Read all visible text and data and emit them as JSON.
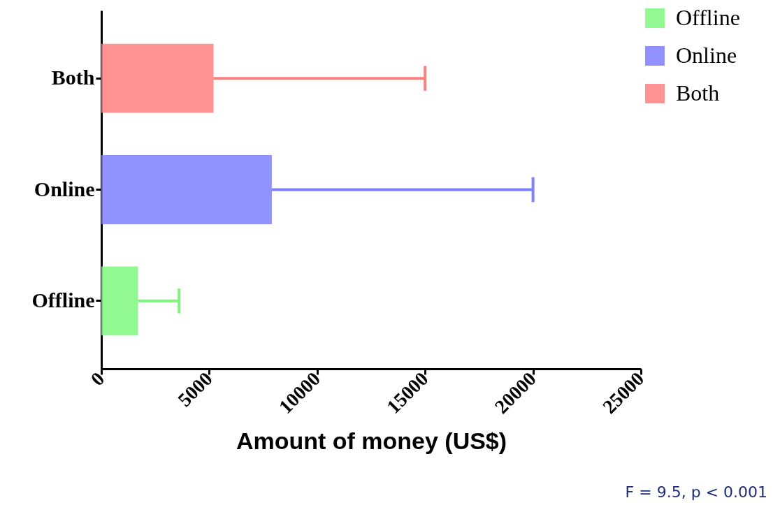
{
  "chart_data": {
    "type": "bar",
    "orientation": "horizontal",
    "categories": [
      "Both",
      "Online",
      "Offline"
    ],
    "series": [
      {
        "name": "Offline",
        "color": "#7ff77f",
        "values": [
          null,
          null,
          1700
        ],
        "errors": [
          null,
          null,
          [
            1700,
            3600
          ]
        ]
      },
      {
        "name": "Online",
        "color": "#7f7fff",
        "values": [
          null,
          7900,
          null
        ],
        "errors": [
          null,
          [
            7900,
            20000
          ],
          null
        ]
      },
      {
        "name": "Both",
        "color": "#ff7f7f",
        "values": [
          5200,
          null,
          null
        ],
        "errors": [
          [
            5200,
            15000
          ],
          null,
          null
        ]
      }
    ],
    "xlabel": "Amount of money (US$)",
    "xlim": [
      0,
      25000
    ],
    "xticks": [
      0,
      5000,
      10000,
      15000,
      20000,
      25000
    ],
    "legend": "top right",
    "grid": false,
    "annotations": [
      "F = 9.5, p < 0.001"
    ]
  }
}
